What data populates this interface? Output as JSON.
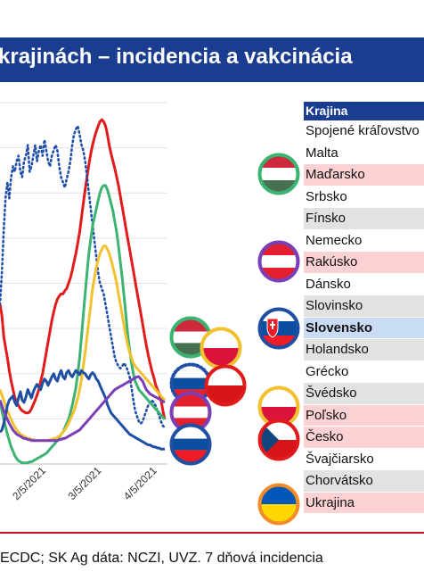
{
  "title": "krajinách – incidencia a vakcinácia",
  "source": "ECDC; SK Ag dáta: NCZI, UVZ. 7 dňová incidencia",
  "table": {
    "header": "Krajina",
    "rows": [
      {
        "name": "Spojené kráľovstvo",
        "style": "white"
      },
      {
        "name": "Malta",
        "style": "white"
      },
      {
        "name": "Maďarsko",
        "style": "pink"
      },
      {
        "name": "Srbsko",
        "style": "white"
      },
      {
        "name": "Fínsko",
        "style": "gray"
      },
      {
        "name": "Nemecko",
        "style": "white"
      },
      {
        "name": "Rakúsko",
        "style": "pink"
      },
      {
        "name": "Dánsko",
        "style": "white"
      },
      {
        "name": "Slovinsko",
        "style": "gray"
      },
      {
        "name": "Slovensko",
        "style": "blue"
      },
      {
        "name": "Holandsko",
        "style": "gray"
      },
      {
        "name": "Grécko",
        "style": "white"
      },
      {
        "name": "Švédsko",
        "style": "gray"
      },
      {
        "name": "Poľsko",
        "style": "pink"
      },
      {
        "name": "Česko",
        "style": "pink"
      },
      {
        "name": "Švajčiarsko",
        "style": "white"
      },
      {
        "name": "Chorvátsko",
        "style": "gray"
      },
      {
        "name": "Ukrajina",
        "style": "pink"
      }
    ]
  },
  "colors": {
    "title_bg": "#1a3d8f",
    "red": "#e11b1b",
    "green": "#3cb371",
    "yellow": "#f2c12e",
    "blue": "#1e4fa3",
    "purple": "#7b3fb5",
    "dotted": "#1f4fa8"
  },
  "chart_data": {
    "type": "line",
    "x_ticks": [
      "2/5/2021",
      "3/5/2021",
      "4/5/2021"
    ],
    "x_index_of_ticks": [
      25,
      55,
      85
    ],
    "series": [
      {
        "color": "red",
        "style": "solid",
        "values": [
          150,
          140,
          120,
          110,
          100,
          88,
          78,
          70,
          63,
          58,
          55,
          52,
          50,
          49,
          48,
          48,
          49,
          52,
          56,
          60,
          65,
          70,
          78,
          85,
          95,
          105,
          115,
          125,
          135,
          143,
          150,
          155,
          158,
          160,
          160,
          163,
          165,
          170,
          175,
          182,
          190,
          198,
          208,
          218,
          232,
          245,
          258,
          270,
          282,
          292,
          300,
          307,
          313,
          318,
          322,
          324,
          322,
          318,
          310,
          300,
          292,
          285,
          278,
          270,
          262,
          252,
          242,
          232,
          222,
          212,
          202,
          192,
          182,
          172,
          162,
          152,
          142,
          132,
          122,
          112,
          103,
          95,
          88,
          82,
          75,
          70,
          66,
          60,
          50,
          42
        ]
      },
      {
        "color": "dotted",
        "style": "dotted",
        "values": [
          150,
          180,
          220,
          250,
          265,
          250,
          270,
          280,
          275,
          285,
          290,
          275,
          270,
          285,
          290,
          300,
          275,
          280,
          290,
          300,
          285,
          295,
          300,
          290,
          305,
          295,
          285,
          280,
          290,
          295,
          300,
          295,
          280,
          270,
          265,
          260,
          268,
          275,
          285,
          300,
          310,
          315,
          318,
          310,
          300,
          295,
          285,
          270,
          255,
          240,
          225,
          210,
          195,
          180,
          170,
          165,
          160,
          150,
          140,
          130,
          120,
          110,
          100,
          95,
          92,
          90,
          92,
          95,
          92,
          88,
          82,
          72,
          60,
          50,
          45,
          40,
          38,
          40,
          45,
          50,
          55,
          58,
          60,
          58,
          55,
          50,
          45,
          40,
          36,
          34
        ]
      },
      {
        "color": "green",
        "style": "solid",
        "values": [
          60,
          50,
          42,
          35,
          28,
          22,
          16,
          12,
          8,
          5,
          3,
          2,
          1,
          1,
          1,
          1,
          2,
          2,
          3,
          4,
          5,
          6,
          7,
          8,
          9,
          10,
          12,
          14,
          16,
          18,
          20,
          22,
          25,
          28,
          30,
          34,
          38,
          42,
          48,
          55,
          63,
          72,
          85,
          100,
          120,
          140,
          160,
          180,
          198,
          212,
          224,
          232,
          240,
          248,
          255,
          260,
          262,
          262,
          258,
          252,
          245,
          238,
          228,
          218,
          205,
          190,
          175,
          158,
          140,
          122,
          108,
          95,
          85,
          78,
          74,
          70,
          68,
          66,
          64,
          62,
          60,
          58,
          56,
          54,
          52,
          50,
          48,
          46,
          44,
          42
        ]
      },
      {
        "color": "yellow",
        "style": "solid",
        "values": [
          70,
          65,
          60,
          55,
          50,
          46,
          42,
          38,
          35,
          32,
          30,
          28,
          27,
          26,
          25,
          24,
          24,
          23,
          23,
          22,
          22,
          22,
          22,
          22,
          22,
          22,
          22,
          23,
          23,
          24,
          24,
          25,
          26,
          28,
          30,
          32,
          35,
          38,
          42,
          46,
          50,
          56,
          62,
          70,
          80,
          92,
          105,
          120,
          135,
          150,
          165,
          175,
          185,
          192,
          198,
          202,
          205,
          205,
          202,
          198,
          192,
          185,
          178,
          170,
          160,
          150,
          140,
          130,
          120,
          112,
          105,
          100,
          95,
          92,
          90,
          88,
          86,
          84,
          82,
          80,
          78,
          76,
          74,
          72,
          70,
          68,
          66,
          64,
          62,
          60
        ]
      },
      {
        "color": "blue",
        "style": "solid",
        "values": [
          30,
          32,
          38,
          45,
          55,
          60,
          62,
          64,
          58,
          55,
          62,
          68,
          60,
          58,
          63,
          70,
          66,
          62,
          68,
          72,
          75,
          72,
          70,
          76,
          80,
          78,
          74,
          78,
          82,
          85,
          80,
          78,
          84,
          88,
          82,
          80,
          86,
          88,
          84,
          82,
          85,
          88,
          86,
          84,
          88,
          86,
          85,
          82,
          80,
          84,
          86,
          84,
          80,
          78,
          74,
          70,
          66,
          62,
          56,
          52,
          48,
          46,
          44,
          42,
          40,
          38,
          36,
          34,
          32,
          30,
          28,
          27,
          26,
          25,
          24,
          23,
          22,
          21,
          20,
          19,
          18,
          18,
          17,
          16,
          16,
          15,
          15,
          14,
          14,
          14
        ]
      },
      {
        "color": "purple",
        "style": "solid",
        "values": [
          60,
          55,
          50,
          46,
          42,
          38,
          35,
          32,
          30,
          28,
          27,
          26,
          25,
          24,
          24,
          23,
          23,
          22,
          22,
          22,
          22,
          22,
          22,
          22,
          22,
          22,
          22,
          22,
          22,
          22,
          22,
          22,
          23,
          23,
          24,
          24,
          25,
          26,
          27,
          28,
          29,
          30,
          31,
          32,
          34,
          36,
          38,
          40,
          42,
          44,
          46,
          48,
          50,
          52,
          54,
          56,
          58,
          60,
          62,
          64,
          66,
          68,
          70,
          71,
          72,
          73,
          74,
          75,
          76,
          77,
          78,
          79,
          80,
          81,
          82,
          82,
          80,
          78,
          74,
          70,
          68,
          66,
          65,
          64,
          63,
          62,
          61,
          60,
          59,
          58
        ]
      }
    ],
    "ylim": [
      0,
      340
    ],
    "grid": true
  }
}
